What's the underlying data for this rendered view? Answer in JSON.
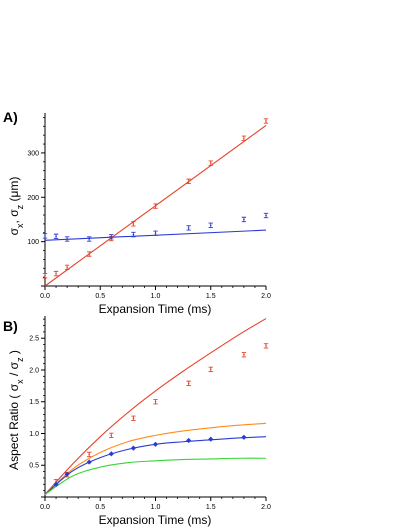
{
  "chart_data": [
    {
      "type": "scatter",
      "panel_label": "A)",
      "xlabel": "Expansion Time (ms)",
      "ylabel": "σx, σz (μm)",
      "xlim": [
        0,
        2.0
      ],
      "ylim": [
        0,
        390
      ],
      "x_ticks": [
        "0.0",
        "0.5",
        "1.0",
        "1.5",
        "2.0"
      ],
      "y_ticks": [
        "100",
        "200",
        "300"
      ],
      "grid": false,
      "series": [
        {
          "color": "#e8432a",
          "marker": "errorbar",
          "x": [
            0.0,
            0.1,
            0.2,
            0.4,
            0.6,
            0.8,
            1.0,
            1.3,
            1.5,
            1.8,
            2.0
          ],
          "y": [
            23,
            28,
            42,
            72,
            107,
            140,
            180,
            236,
            277,
            333,
            372
          ]
        },
        {
          "color": "#2b3bd6",
          "marker": "errorbar",
          "x": [
            0.0,
            0.1,
            0.2,
            0.4,
            0.6,
            0.8,
            1.0,
            1.3,
            1.5,
            1.8,
            2.0
          ],
          "y": [
            113,
            112,
            106,
            106,
            111,
            116,
            119,
            131,
            137,
            150,
            159
          ]
        }
      ],
      "fits": [
        {
          "color": "#e8432a",
          "x": [
            0,
            2.0
          ],
          "y": [
            0,
            362
          ]
        },
        {
          "color": "#2b3bd6",
          "x": [
            0,
            2.0
          ],
          "y": [
            103,
            126
          ]
        }
      ]
    },
    {
      "type": "scatter",
      "panel_label": "B)",
      "xlabel": "Expansion Time (ms)",
      "ylabel": "Aspect Ratio ( σx / σz )",
      "xlim": [
        0,
        2.0
      ],
      "ylim": [
        0,
        2.85
      ],
      "x_ticks": [
        "0.0",
        "0.5",
        "1.0",
        "1.5",
        "2.0"
      ],
      "y_ticks": [
        "0.5",
        "1.0",
        "1.5",
        "2.0",
        "2.5"
      ],
      "grid": false,
      "series": [
        {
          "color": "#e8432a",
          "marker": "errorbar",
          "x": [
            0.1,
            0.2,
            0.4,
            0.6,
            0.8,
            1.0,
            1.3,
            1.5,
            1.8,
            2.0
          ],
          "y": [
            0.24,
            0.35,
            0.67,
            0.97,
            1.24,
            1.5,
            1.79,
            2.01,
            2.24,
            2.38
          ]
        },
        {
          "color": "#2b3bd6",
          "marker": "diamond",
          "x": [
            0.1,
            0.2,
            0.4,
            0.6,
            0.8,
            1.0,
            1.3,
            1.5,
            1.8
          ],
          "y": [
            0.2,
            0.36,
            0.55,
            0.68,
            0.77,
            0.83,
            0.89,
            0.91,
            0.94
          ]
        }
      ],
      "fits": [
        {
          "color": "#e8432a",
          "x": [
            0,
            0.25,
            0.5,
            0.75,
            1.0,
            1.25,
            1.5,
            1.75,
            2.0
          ],
          "y": [
            0.04,
            0.52,
            0.95,
            1.33,
            1.67,
            1.98,
            2.27,
            2.55,
            2.81
          ]
        },
        {
          "color": "#ff8c1a",
          "x": [
            0,
            0.25,
            0.5,
            0.75,
            1.0,
            1.25,
            1.5,
            1.75,
            2.0
          ],
          "y": [
            0.04,
            0.44,
            0.7,
            0.87,
            0.97,
            1.04,
            1.09,
            1.13,
            1.16
          ]
        },
        {
          "color": "#2b3bd6",
          "x": [
            0,
            0.25,
            0.5,
            0.75,
            1.0,
            1.25,
            1.5,
            1.75,
            2.0
          ],
          "y": [
            0.04,
            0.41,
            0.62,
            0.75,
            0.83,
            0.87,
            0.9,
            0.93,
            0.95
          ]
        },
        {
          "color": "#33d633",
          "x": [
            0,
            0.25,
            0.5,
            0.75,
            1.0,
            1.25,
            1.5,
            1.75,
            2.0
          ],
          "y": [
            0.04,
            0.33,
            0.47,
            0.54,
            0.57,
            0.59,
            0.6,
            0.61,
            0.61
          ]
        }
      ]
    }
  ]
}
